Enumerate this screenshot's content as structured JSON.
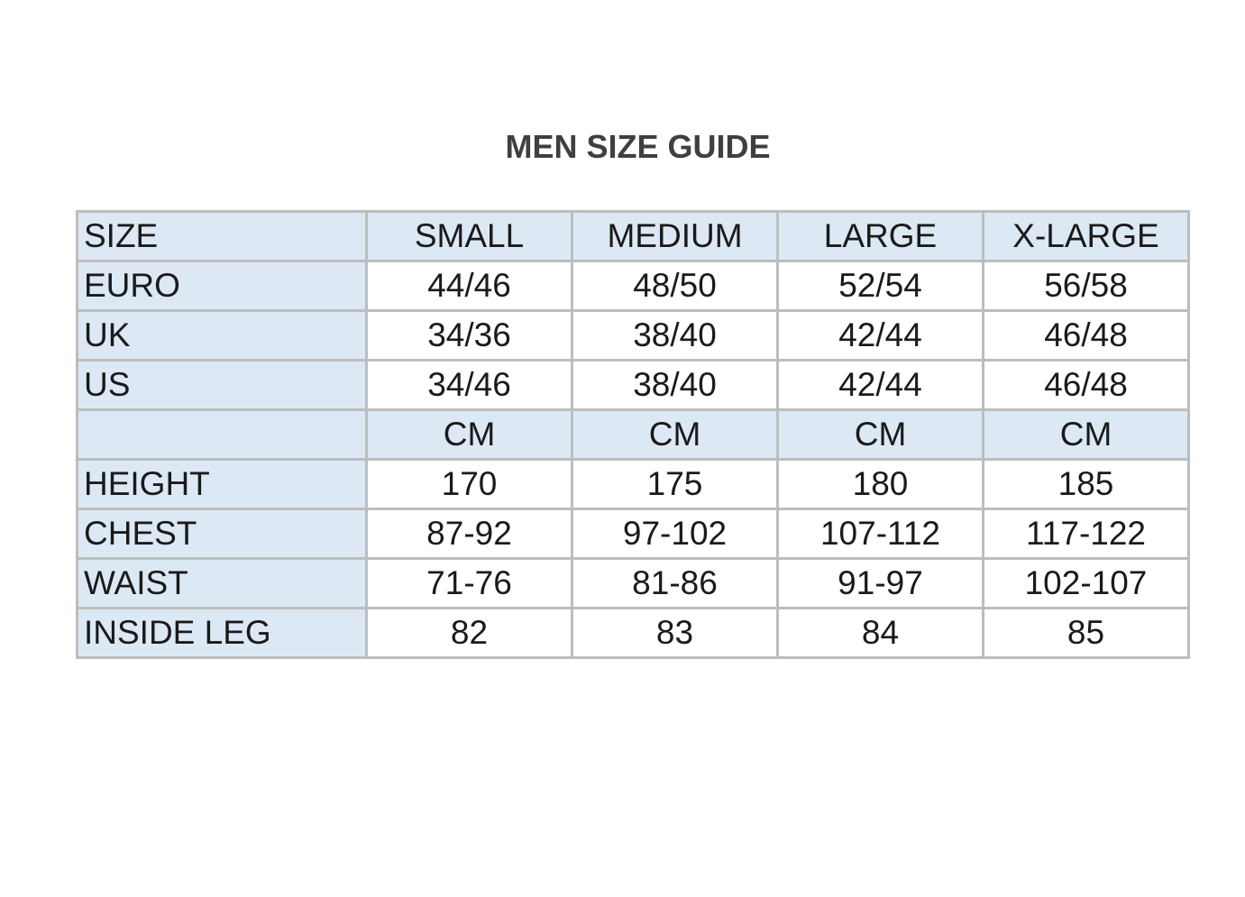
{
  "title": "MEN SIZE GUIDE",
  "table": {
    "rows": [
      {
        "label": "SIZE",
        "values": [
          "SMALL",
          "MEDIUM",
          "LARGE",
          "X-LARGE"
        ],
        "highlight": true
      },
      {
        "label": "EURO",
        "values": [
          "44/46",
          "48/50",
          "52/54",
          "56/58"
        ]
      },
      {
        "label": "UK",
        "values": [
          "34/36",
          "38/40",
          "42/44",
          "46/48"
        ]
      },
      {
        "label": "US",
        "values": [
          "34/46",
          "38/40",
          "42/44",
          "46/48"
        ]
      },
      {
        "label": "",
        "values": [
          "CM",
          "CM",
          "CM",
          "CM"
        ],
        "highlight": true
      },
      {
        "label": "HEIGHT",
        "values": [
          "170",
          "175",
          "180",
          "185"
        ]
      },
      {
        "label": "CHEST",
        "values": [
          "87-92",
          "97-102",
          "107-112",
          "117-122"
        ]
      },
      {
        "label": "WAIST",
        "values": [
          "71-76",
          "81-86",
          "91-97",
          "102-107"
        ]
      },
      {
        "label": "INSIDE LEG",
        "values": [
          "82",
          "83",
          "84",
          "85"
        ]
      }
    ]
  },
  "colors": {
    "highlight": "#dde8f5",
    "border": "#bdbdbd",
    "title": "#3f3f3f"
  }
}
